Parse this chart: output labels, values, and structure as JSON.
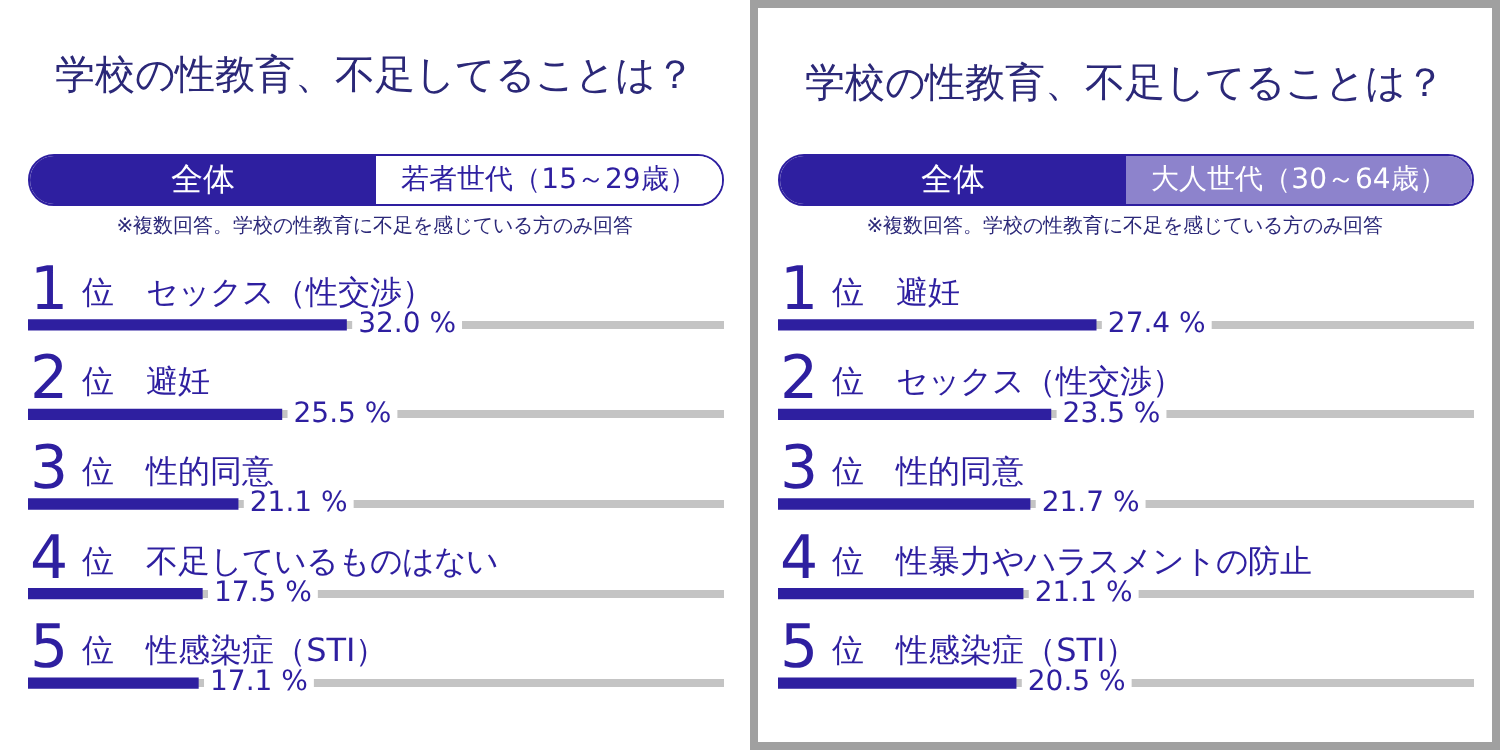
{
  "chart_data": [
    {
      "type": "bar",
      "orientation": "horizontal",
      "title": "学校の性教育、不足してることは？",
      "annotations": [
        "全体",
        "若者世代（15～29歳）",
        "※複数回答。学校の性教育に不足を感じている方のみ回答"
      ],
      "categories": [
        "1位　セックス（性交渉）",
        "2位　避妊",
        "3位　性的同意",
        "4位　不足しているものはない",
        "5位　性感染症（STI）"
      ],
      "values": [
        32.0,
        25.5,
        21.1,
        17.5,
        17.1
      ],
      "value_labels": [
        "32.0 %",
        "25.5 %",
        "21.1 %",
        "17.5 %",
        "17.1 %"
      ],
      "color": "#2e1fa0",
      "tick_labels": false,
      "grid": "y",
      "legend": false
    },
    {
      "type": "bar",
      "orientation": "horizontal",
      "title": "学校の性教育、不足してることは？",
      "annotations": [
        "全体",
        "大人世代（30～64歳）",
        "※複数回答。学校の性教育に不足を感じている方のみ回答"
      ],
      "categories": [
        "1位　避妊",
        "2位　セックス（性交渉）",
        "3位　性的同意",
        "4位　性暴力やハラスメントの防止",
        "5位　性感染症（STI）"
      ],
      "values": [
        27.4,
        23.5,
        21.7,
        21.1,
        20.5
      ],
      "value_labels": [
        "27.4 %",
        "23.5 %",
        "21.7 %",
        "21.1 %",
        "20.5 %"
      ],
      "color": "#2e1fa0",
      "tick_labels": false,
      "grid": "y",
      "legend": false
    }
  ]
}
